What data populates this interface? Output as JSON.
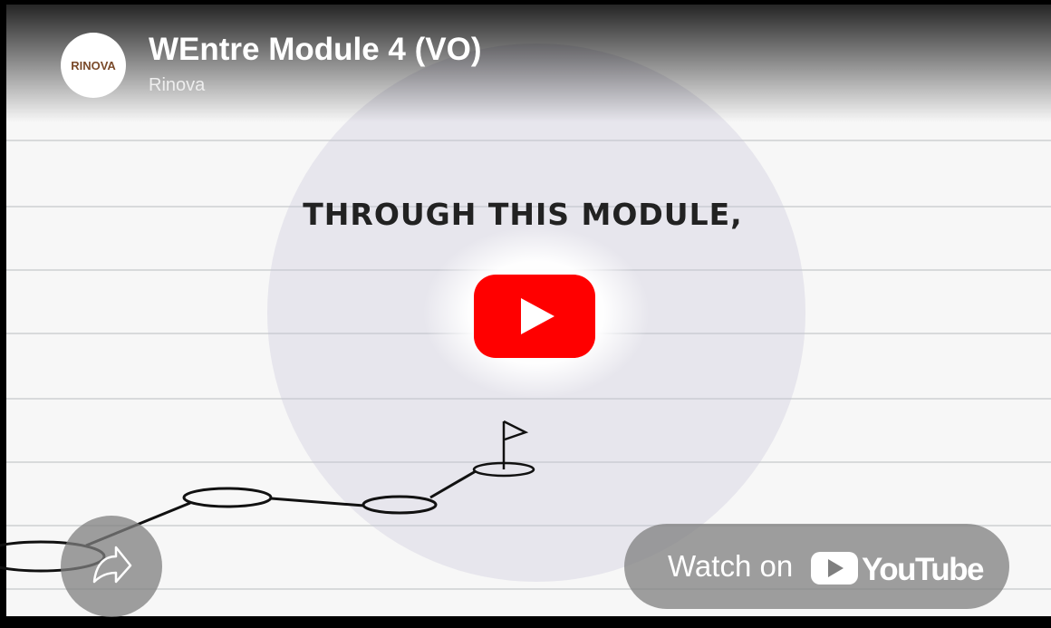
{
  "header": {
    "title": "WEntre Module 4 (VO)",
    "channel": "Rinova",
    "logo": "RINOVA"
  },
  "video": {
    "caption": "THROUGH THIS MODULE,"
  },
  "watch": {
    "prefix": "Watch on",
    "brand": "YouTube"
  }
}
